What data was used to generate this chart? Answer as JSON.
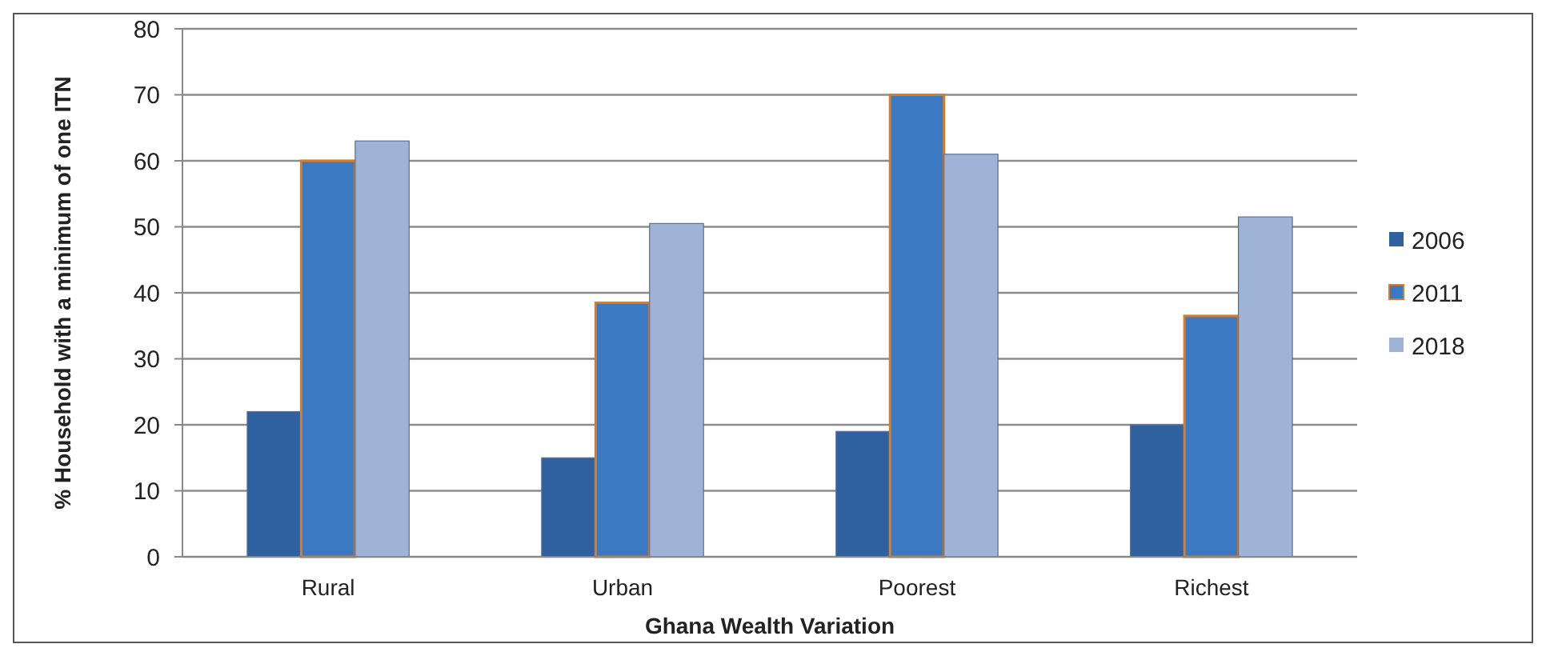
{
  "chart_data": {
    "type": "bar",
    "xlabel": "Ghana Wealth Variation",
    "ylabel": "% Household with a minimum of one ITN",
    "categories": [
      "Rural",
      "Urban",
      "Poorest",
      "Richest"
    ],
    "series": [
      {
        "name": "2006",
        "color": "#2f609f",
        "values": [
          22,
          15,
          19,
          20
        ]
      },
      {
        "name": "2011",
        "color": "#3b79c3",
        "values": [
          60,
          38.5,
          70,
          36.5
        ]
      },
      {
        "name": "2018",
        "color": "#9fb3d6",
        "values": [
          63,
          50.5,
          61,
          51.5
        ]
      }
    ],
    "ylim": [
      0,
      80
    ],
    "yticks": [
      0,
      10,
      20,
      30,
      40,
      50,
      60,
      70,
      80
    ],
    "grid": "y",
    "legend": "right"
  }
}
